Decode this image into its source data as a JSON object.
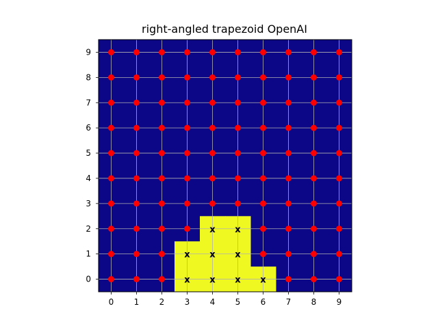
{
  "chart_data": {
    "type": "heatmap",
    "title": "right-angled trapezoid OpenAI",
    "xlabel": "",
    "ylabel": "",
    "xlim": [
      -0.5,
      9.5
    ],
    "ylim": [
      -0.5,
      9.5
    ],
    "x_ticks": [
      "0",
      "1",
      "2",
      "3",
      "4",
      "5",
      "6",
      "7",
      "8",
      "9"
    ],
    "y_ticks": [
      "0",
      "1",
      "2",
      "3",
      "4",
      "5",
      "6",
      "7",
      "8",
      "9"
    ],
    "grid": true,
    "colors": {
      "background": "#0c0786",
      "highlight": "#eff821",
      "dot": "#ff0000",
      "grid": "#b0b0b0"
    },
    "highlighted_cells": [
      [
        3,
        0
      ],
      [
        4,
        0
      ],
      [
        5,
        0
      ],
      [
        6,
        0
      ],
      [
        3,
        1
      ],
      [
        4,
        1
      ],
      [
        5,
        1
      ],
      [
        4,
        2
      ],
      [
        5,
        2
      ]
    ],
    "x_marker": "x",
    "x_marked_cells": [
      [
        3,
        0
      ],
      [
        4,
        0
      ],
      [
        5,
        0
      ],
      [
        6,
        0
      ],
      [
        3,
        1
      ],
      [
        4,
        1
      ],
      [
        5,
        1
      ],
      [
        4,
        2
      ],
      [
        5,
        2
      ]
    ]
  }
}
